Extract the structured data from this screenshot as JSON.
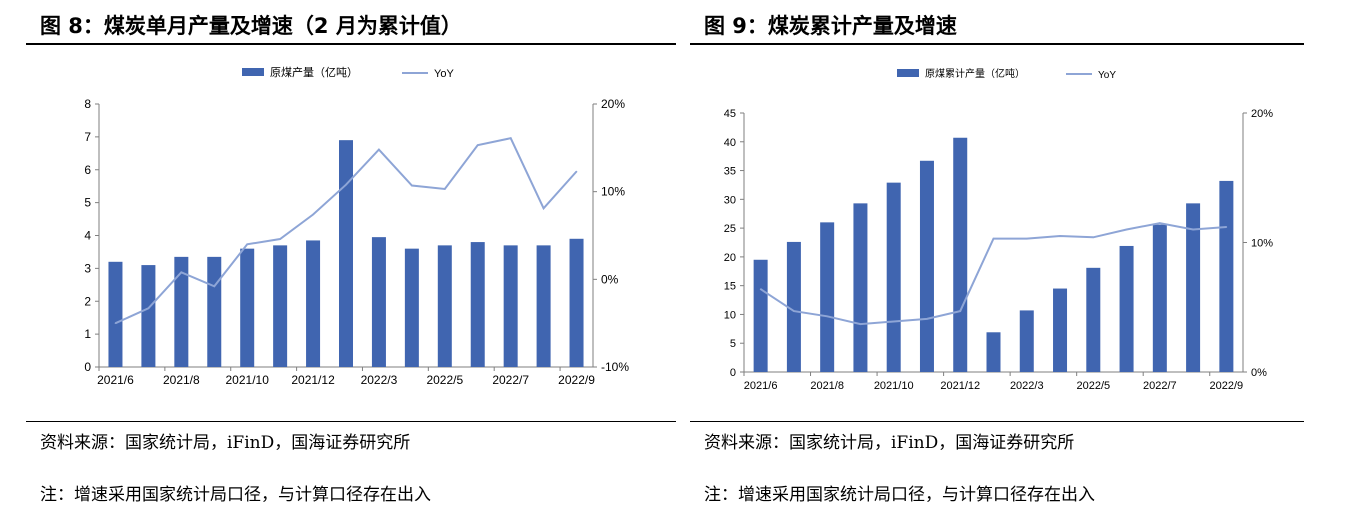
{
  "colors": {
    "bar": "#4065b0",
    "line": "#8ea5d6",
    "axis": "#7f7f7f",
    "text": "#000000"
  },
  "panels": [
    {
      "title": "图 8：煤炭单月产量及增速（2 月为累计值）",
      "source": "资料来源：国家统计局，iFinD，国海证券研究所",
      "note": "注：增速采用国家统计局口径，与计算口径存在出入"
    },
    {
      "title": "图 9：煤炭累计产量及增速",
      "source": "资料来源：国家统计局，iFinD，国海证券研究所",
      "note": "注：增速采用国家统计局口径，与计算口径存在出入"
    }
  ],
  "chart_data": [
    {
      "type": "bar",
      "categories": [
        "2021/6",
        "2021/7",
        "2021/8",
        "2021/9",
        "2021/10",
        "2021/11",
        "2021/12",
        "2022/2",
        "2022/3",
        "2022/4",
        "2022/5",
        "2022/6",
        "2022/7",
        "2022/8",
        "2022/9"
      ],
      "x_tick_labels": [
        "2021/6",
        "2021/8",
        "2021/10",
        "2021/12",
        "2022/3",
        "2022/5",
        "2022/7",
        "2022/9"
      ],
      "series": [
        {
          "name": "原煤产量（亿吨）",
          "type": "bar",
          "axis": "left",
          "values": [
            3.2,
            3.1,
            3.35,
            3.35,
            3.6,
            3.7,
            3.85,
            6.9,
            3.95,
            3.6,
            3.7,
            3.8,
            3.7,
            3.7,
            3.9
          ]
        },
        {
          "name": "YoY",
          "type": "line",
          "axis": "right",
          "values": [
            -5.0,
            -3.3,
            0.8,
            -0.8,
            4.0,
            4.6,
            7.4,
            10.8,
            14.8,
            10.7,
            10.3,
            15.3,
            16.1,
            8.1,
            12.3
          ]
        }
      ],
      "ylim": [
        0,
        8
      ],
      "y_ticks": [
        "0",
        "1",
        "2",
        "3",
        "4",
        "5",
        "6",
        "7",
        "8"
      ],
      "y2lim": [
        -10,
        20
      ],
      "y2_ticks": [
        "-10%",
        "0%",
        "10%",
        "20%"
      ],
      "legend": "top-center",
      "grid": false
    },
    {
      "type": "bar",
      "categories": [
        "2021/6",
        "2021/7",
        "2021/8",
        "2021/9",
        "2021/10",
        "2021/11",
        "2021/12",
        "2022/2",
        "2022/3",
        "2022/4",
        "2022/5",
        "2022/6",
        "2022/7",
        "2022/8",
        "2022/9"
      ],
      "x_tick_labels": [
        "2021/6",
        "2021/8",
        "2021/10",
        "2021/12",
        "2022/3",
        "2022/5",
        "2022/7",
        "2022/9"
      ],
      "series": [
        {
          "name": "原煤累计产量（亿吨）",
          "type": "bar",
          "axis": "left",
          "values": [
            19.5,
            22.6,
            26.0,
            29.3,
            32.9,
            36.7,
            40.7,
            6.9,
            10.7,
            14.5,
            18.1,
            21.9,
            25.6,
            29.3,
            33.2
          ]
        },
        {
          "name": "YoY",
          "type": "line",
          "axis": "right",
          "values": [
            6.4,
            4.7,
            4.3,
            3.7,
            3.9,
            4.1,
            4.7,
            10.3,
            10.3,
            10.5,
            10.4,
            11.0,
            11.5,
            11.0,
            11.2
          ]
        }
      ],
      "ylim": [
        0,
        45
      ],
      "y_ticks": [
        "0",
        "5",
        "10",
        "15",
        "20",
        "25",
        "30",
        "35",
        "40",
        "45"
      ],
      "y2lim": [
        0,
        20
      ],
      "y2_ticks": [
        "0%",
        "10%",
        "20%"
      ],
      "legend": "top-center",
      "grid": false
    }
  ]
}
